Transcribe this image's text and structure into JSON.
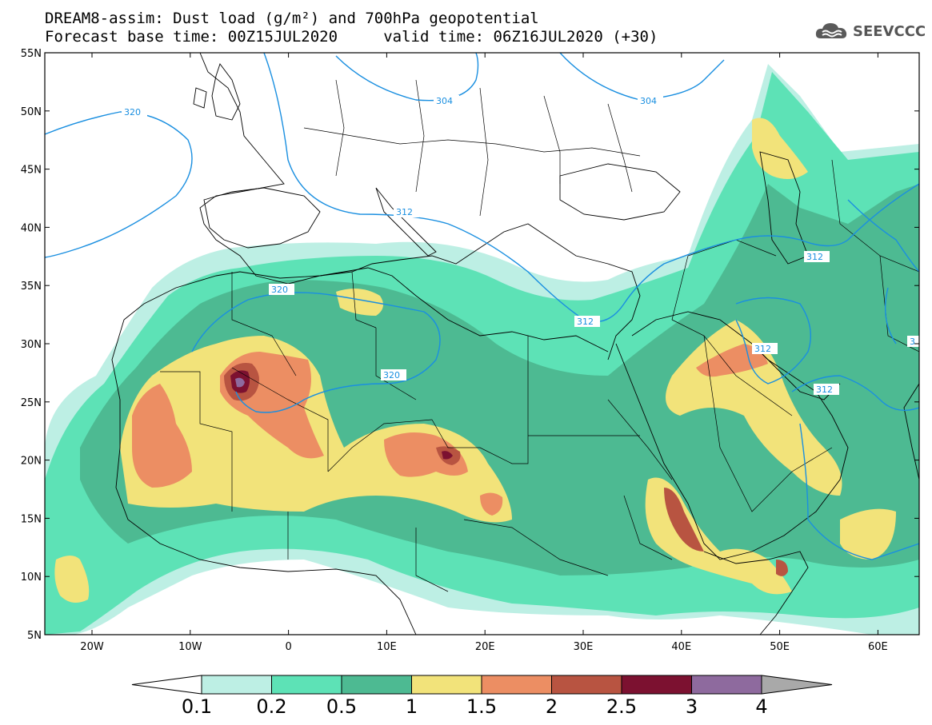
{
  "header": {
    "title_line1": "DREAM8-assim: Dust load (g/m²) and 700hPa geopotential",
    "title_line2": "Forecast base time: 00Z15JUL2020     valid time: 06Z16JUL2020 (+30)",
    "logo_text": "SEEVCCC",
    "logo_icon": "cloud-logo-icon"
  },
  "axes": {
    "lat_labels": [
      "55N",
      "50N",
      "45N",
      "40N",
      "35N",
      "30N",
      "25N",
      "20N",
      "15N",
      "10N",
      "5N"
    ],
    "lon_labels": [
      "20W",
      "10W",
      "0",
      "10E",
      "20E",
      "30E",
      "40E",
      "50E",
      "60E"
    ]
  },
  "contours": {
    "labels": [
      "320",
      "304",
      "304",
      "312",
      "320",
      "320",
      "312",
      "312",
      "312",
      "312",
      "3"
    ]
  },
  "colorbar": {
    "labels": [
      "0.1",
      "0.2",
      "0.5",
      "1",
      "1.5",
      "2",
      "2.5",
      "3",
      "4"
    ],
    "colors": [
      "#ffffff",
      "#bdefe4",
      "#5de2b6",
      "#4dba92",
      "#f2e37a",
      "#ec8e63",
      "#b85441",
      "#7c1130",
      "#8e6a9e",
      "#a9a9a9"
    ]
  },
  "map": {
    "ocean_color": "#ffffff",
    "contour_color": "#1a8fe0",
    "border_color": "#000000"
  }
}
